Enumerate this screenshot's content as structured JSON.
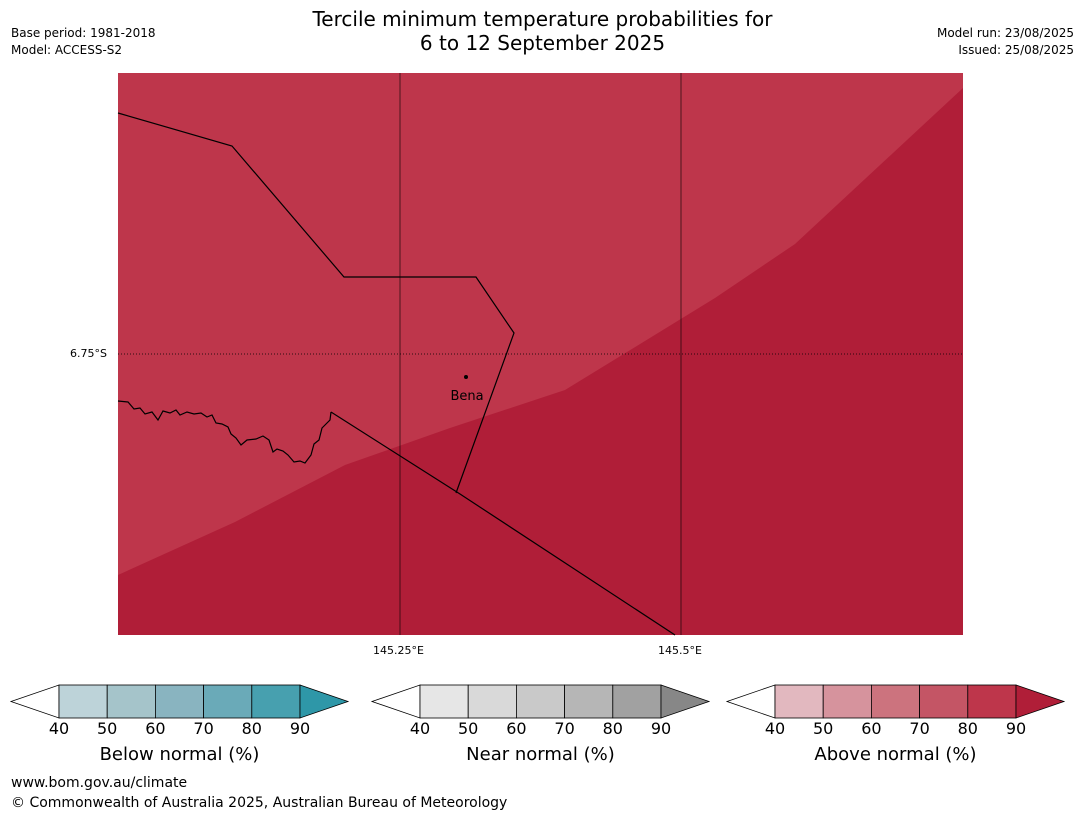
{
  "header": {
    "title_line1": "Tercile minimum temperature probabilities for",
    "title_line2": "6 to 12 September 2025",
    "base_period": "Base period: 1981-2018",
    "model": "Model: ACCESS-S2",
    "model_run": "Model run: 23/08/2025",
    "issued": "Issued: 25/08/2025"
  },
  "map": {
    "lat_label": "6.75°S",
    "lon_labels": [
      "145.25°E",
      "145.5°E"
    ],
    "town": "Bena",
    "colors": {
      "above_80": "#be364b",
      "above_90": "#b01e38",
      "border": "#000000"
    }
  },
  "colorbars": [
    {
      "title": "Below normal (%)",
      "ticks": [
        "40",
        "50",
        "60",
        "70",
        "80",
        "90"
      ],
      "colors": [
        "#ffffff",
        "#bdd3d9",
        "#a5c4ca",
        "#89b4c0",
        "#6aaab8",
        "#47a0af",
        "#2e97a8"
      ]
    },
    {
      "title": "Near normal (%)",
      "ticks": [
        "40",
        "50",
        "60",
        "70",
        "80",
        "90"
      ],
      "colors": [
        "#ffffff",
        "#e6e6e6",
        "#d9d9d9",
        "#c9c9c9",
        "#b6b6b6",
        "#a1a1a1",
        "#878787"
      ]
    },
    {
      "title": "Above normal (%)",
      "ticks": [
        "40",
        "50",
        "60",
        "70",
        "80",
        "90"
      ],
      "colors": [
        "#ffffff",
        "#e2b8bf",
        "#d6939d",
        "#cc737e",
        "#c45565",
        "#be364b",
        "#b01e38"
      ]
    }
  ],
  "footer": {
    "url": "www.bom.gov.au/climate",
    "copyright": "© Commonwealth of Australia 2025, Australian Bureau of Meteorology"
  }
}
